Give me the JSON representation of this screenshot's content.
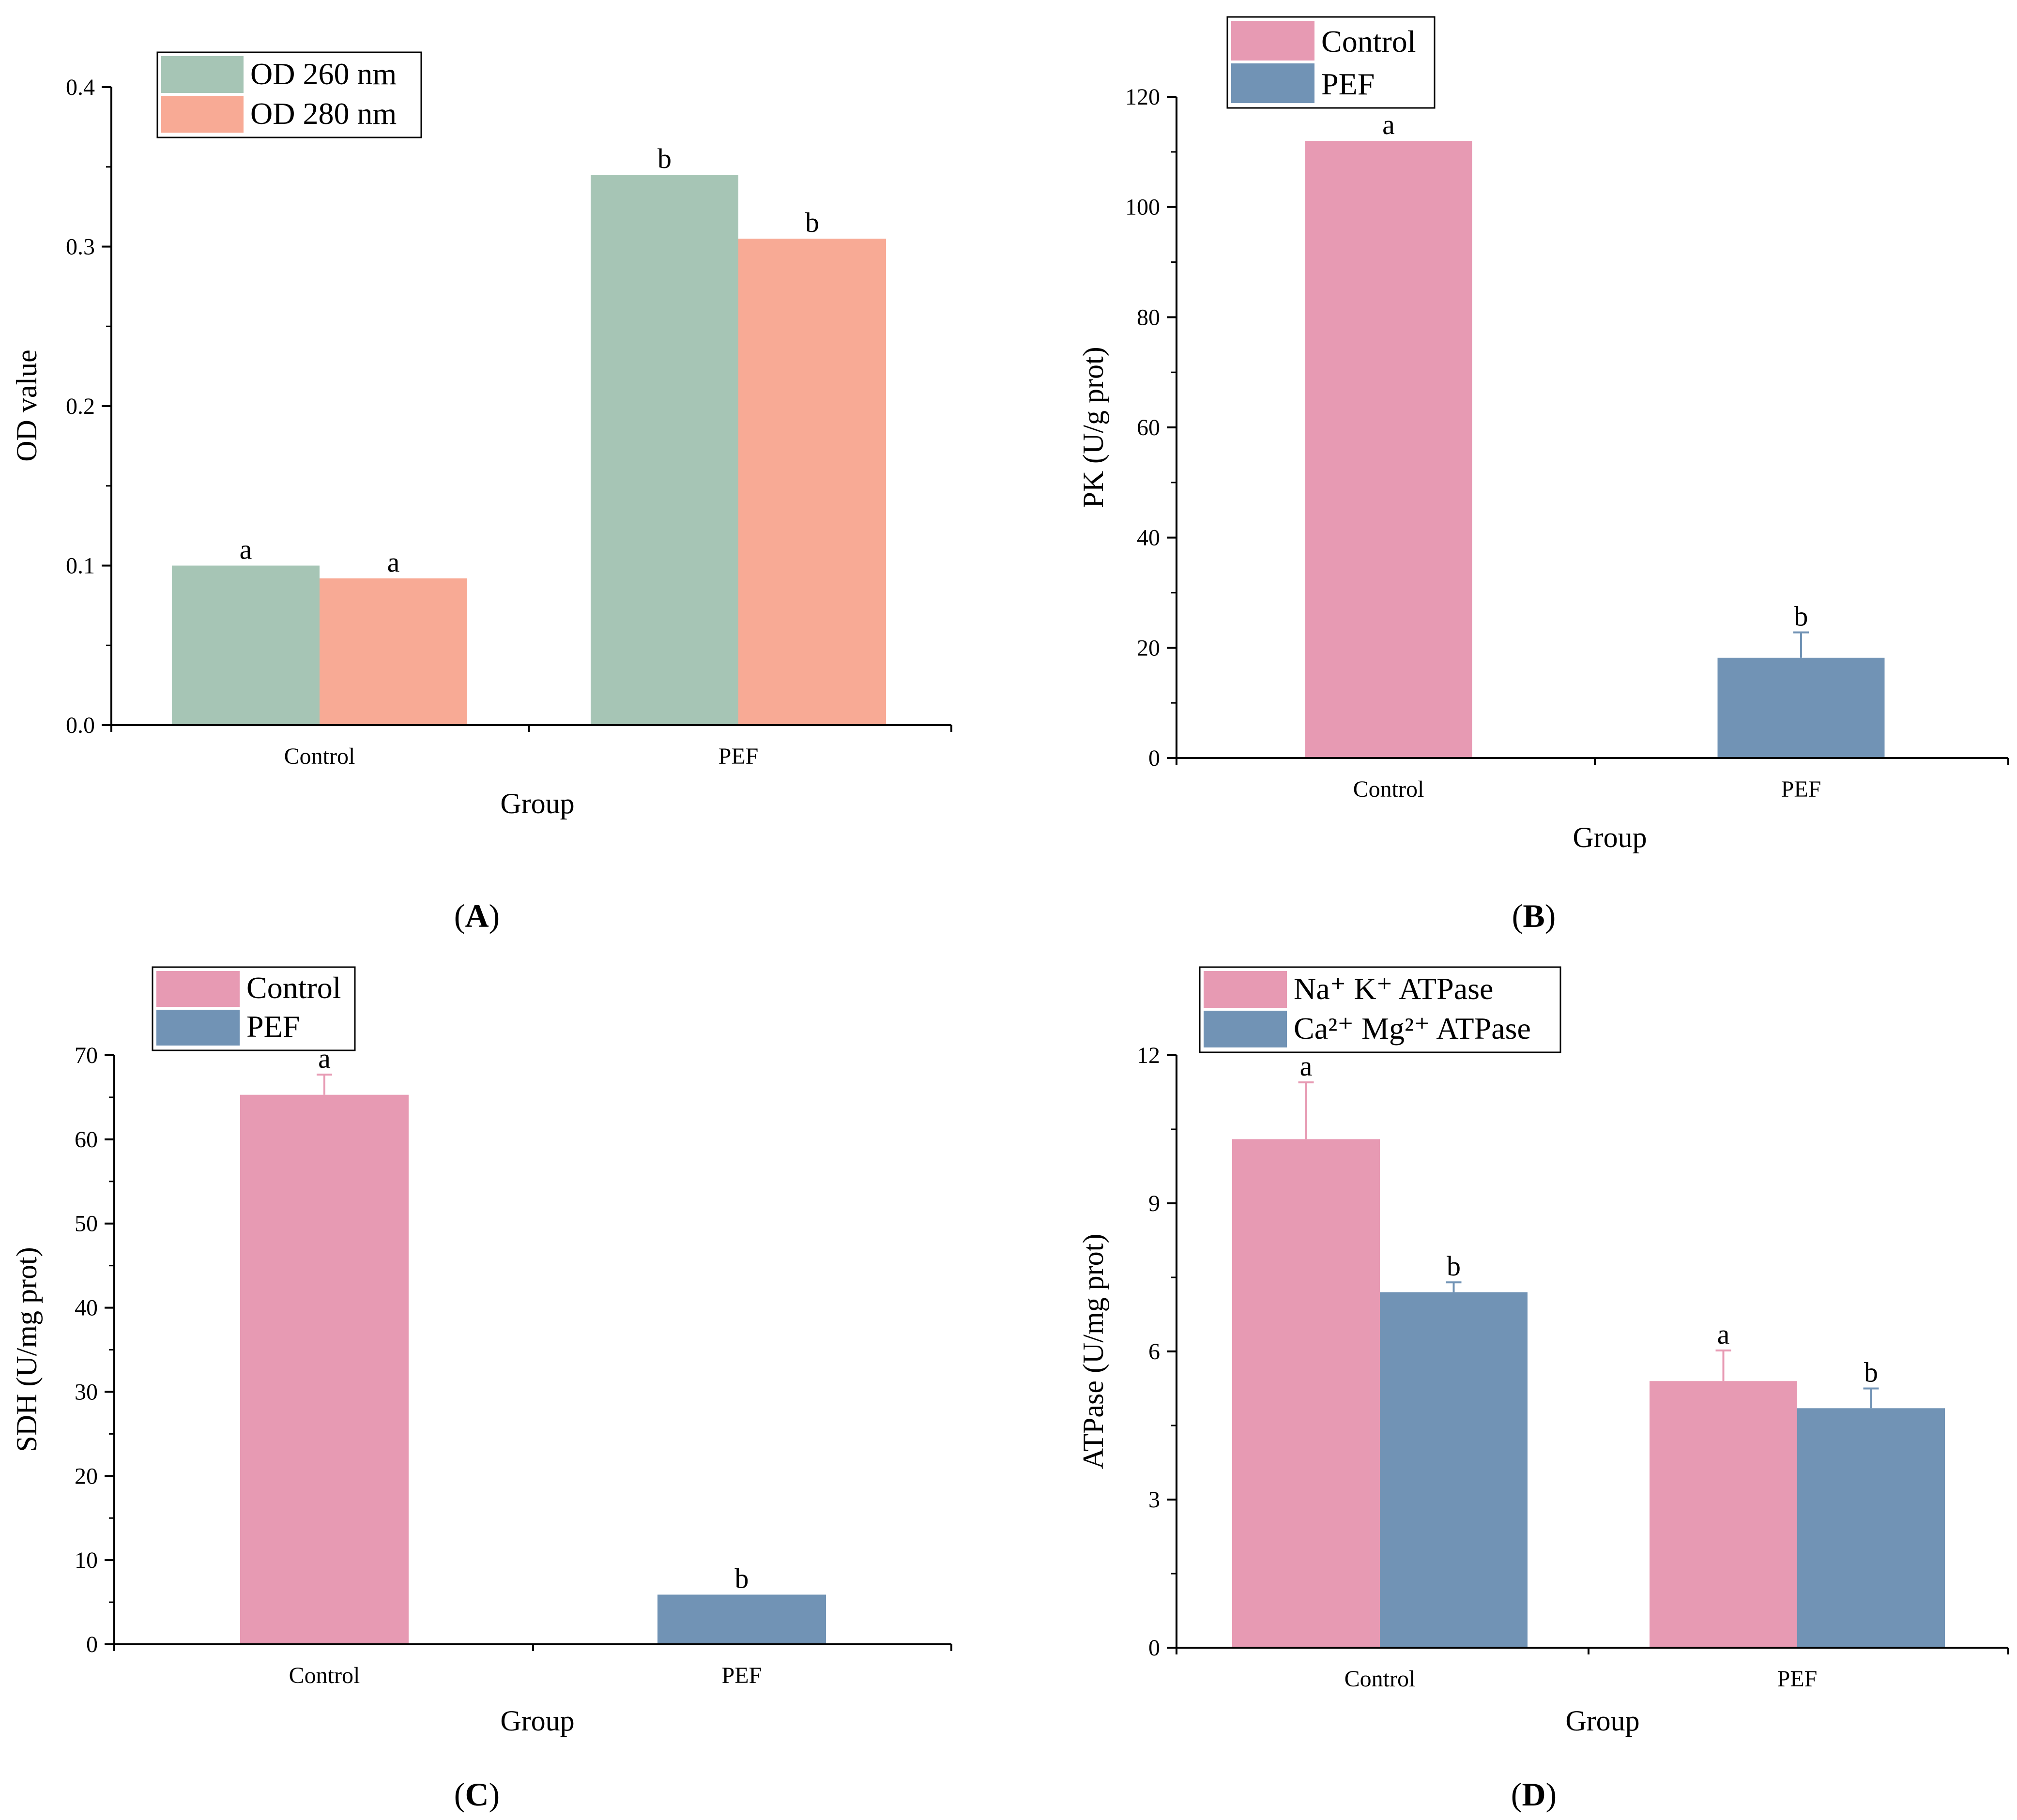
{
  "chart_data": [
    {
      "panel": "A",
      "type": "bar",
      "xlabel": "Group",
      "ylabel": "OD value",
      "ylim": [
        0,
        0.4
      ],
      "yticks": [
        "0.0",
        "0.1",
        "0.2",
        "0.3",
        "0.4"
      ],
      "categories": [
        "Control",
        "PEF"
      ],
      "series": [
        {
          "name": "OD 260 nm",
          "color": "#a6c5b5",
          "values": [
            0.1,
            0.345
          ],
          "errors": [
            0,
            0
          ],
          "labels": [
            "a",
            "b"
          ]
        },
        {
          "name": "OD 280 nm",
          "color": "#f8aa95",
          "values": [
            0.092,
            0.305
          ],
          "errors": [
            0,
            0
          ],
          "labels": [
            "a",
            "b"
          ]
        }
      ],
      "legend": "top-left",
      "grid": false
    },
    {
      "panel": "B",
      "type": "bar",
      "xlabel": "Group",
      "ylabel": "PK (U/g prot)",
      "ylim": [
        0,
        120
      ],
      "yticks": [
        "0",
        "20",
        "40",
        "60",
        "80",
        "100",
        "120"
      ],
      "categories": [
        "Control",
        "PEF"
      ],
      "series": [
        {
          "name": "Control",
          "color": "#e79ab3",
          "values": [
            112,
            null
          ],
          "errors": [
            0,
            0
          ],
          "labels": [
            "a",
            ""
          ]
        },
        {
          "name": "PEF",
          "color": "#7193b5",
          "values": [
            null,
            18.2
          ],
          "errors": [
            0,
            4.6
          ],
          "labels": [
            "",
            "b"
          ]
        }
      ],
      "legend": "top-left",
      "grid": false
    },
    {
      "panel": "C",
      "type": "bar",
      "xlabel": "Group",
      "ylabel": "SDH (U/mg prot)",
      "ylim": [
        0,
        70
      ],
      "yticks": [
        "0",
        "10",
        "20",
        "30",
        "40",
        "50",
        "60",
        "70"
      ],
      "categories": [
        "Control",
        "PEF"
      ],
      "series": [
        {
          "name": "Control",
          "color": "#e79ab3",
          "values": [
            65.3,
            null
          ],
          "errors": [
            2.4,
            0
          ],
          "labels": [
            "a",
            ""
          ]
        },
        {
          "name": "PEF",
          "color": "#7193b5",
          "values": [
            null,
            5.9
          ],
          "errors": [
            0,
            0
          ],
          "labels": [
            "",
            "b"
          ]
        }
      ],
      "legend": "top-left",
      "grid": false
    },
    {
      "panel": "D",
      "type": "bar",
      "xlabel": "Group",
      "ylabel": "ATPase (U/mg prot)",
      "ylim": [
        0,
        12
      ],
      "yticks": [
        "0",
        "3",
        "6",
        "9",
        "12"
      ],
      "categories": [
        "Control",
        "PEF"
      ],
      "series": [
        {
          "name": "Na⁺ K⁺ ATPase",
          "color": "#e79ab3",
          "values": [
            10.3,
            5.4
          ],
          "errors": [
            1.15,
            0.62
          ],
          "labels": [
            "a",
            "a"
          ]
        },
        {
          "name": "Ca²⁺ Mg²⁺ ATPase",
          "color": "#7193b5",
          "values": [
            7.2,
            4.85
          ],
          "errors": [
            0.2,
            0.4
          ],
          "labels": [
            "b",
            "b"
          ]
        }
      ],
      "legend": "top-left",
      "grid": false
    }
  ],
  "panel_labels": [
    "A",
    "B",
    "C",
    "D"
  ]
}
